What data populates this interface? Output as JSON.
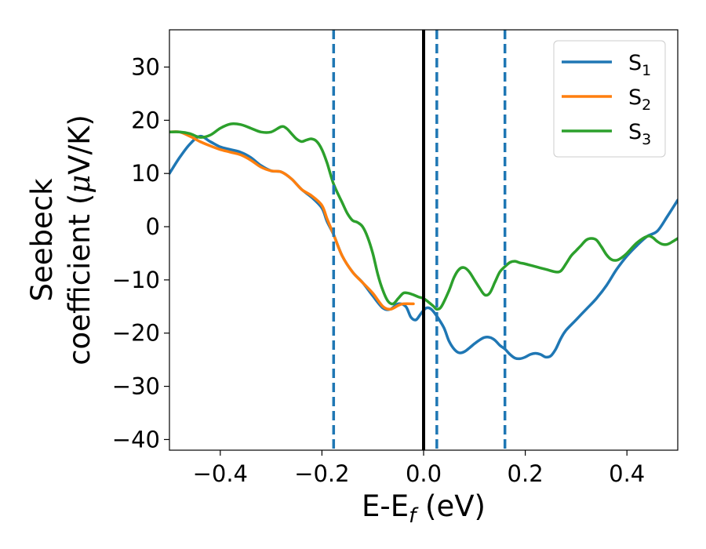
{
  "chart_data": {
    "type": "line",
    "xlabel": {
      "main": "E-E",
      "sub": "f",
      "rest": " (eV)"
    },
    "ylabel": {
      "line1": "Seebeck",
      "line2_prefix": "coefficient  (",
      "mu": "μ",
      "line2_suffix": "V/K)"
    },
    "xlim": [
      -0.5,
      0.5
    ],
    "ylim": [
      -42,
      37
    ],
    "xticks": [
      -0.4,
      -0.2,
      0.0,
      0.2,
      0.4
    ],
    "xtick_labels": [
      "−0.4",
      "−0.2",
      "0.0",
      "0.2",
      "0.4"
    ],
    "yticks": [
      30,
      20,
      10,
      0,
      -10,
      -20,
      -30,
      -40
    ],
    "ytick_labels": [
      "30",
      "20",
      "10",
      "0",
      "−10",
      "−20",
      "−30",
      "−40"
    ],
    "grid": false,
    "legend_position": "top-right",
    "vlines": [
      {
        "x": 0.0,
        "style": "solid",
        "color": "#000000"
      },
      {
        "x": -0.177,
        "style": "dashed",
        "color": "#1f77b4"
      },
      {
        "x": 0.026,
        "style": "dashed",
        "color": "#1f77b4"
      },
      {
        "x": 0.16,
        "style": "dashed",
        "color": "#1f77b4"
      }
    ],
    "series": [
      {
        "name": "S",
        "sub": "1",
        "color": "#1f77b4",
        "points": [
          [
            -0.5,
            10
          ],
          [
            -0.48,
            13
          ],
          [
            -0.46,
            15.5
          ],
          [
            -0.44,
            17
          ],
          [
            -0.42,
            16
          ],
          [
            -0.4,
            15
          ],
          [
            -0.38,
            14.5
          ],
          [
            -0.36,
            14
          ],
          [
            -0.34,
            13
          ],
          [
            -0.32,
            11.5
          ],
          [
            -0.3,
            10.5
          ],
          [
            -0.28,
            10.3
          ],
          [
            -0.26,
            9
          ],
          [
            -0.24,
            7
          ],
          [
            -0.22,
            5.5
          ],
          [
            -0.2,
            3.5
          ],
          [
            -0.19,
            1
          ],
          [
            -0.177,
            -1.5
          ],
          [
            -0.16,
            -5.5
          ],
          [
            -0.14,
            -8.5
          ],
          [
            -0.12,
            -10.5
          ],
          [
            -0.1,
            -13
          ],
          [
            -0.08,
            -15.3
          ],
          [
            -0.065,
            -15.5
          ],
          [
            -0.05,
            -14.5
          ],
          [
            -0.035,
            -15
          ],
          [
            -0.025,
            -17
          ],
          [
            -0.015,
            -17.5
          ],
          [
            -0.005,
            -16.3
          ],
          [
            0.005,
            -15.3
          ],
          [
            0.015,
            -15.5
          ],
          [
            0.026,
            -16.8
          ],
          [
            0.04,
            -19
          ],
          [
            0.05,
            -21.5
          ],
          [
            0.06,
            -23
          ],
          [
            0.07,
            -23.7
          ],
          [
            0.08,
            -23.5
          ],
          [
            0.09,
            -22.8
          ],
          [
            0.1,
            -22
          ],
          [
            0.11,
            -21.3
          ],
          [
            0.12,
            -20.8
          ],
          [
            0.13,
            -20.8
          ],
          [
            0.14,
            -21.3
          ],
          [
            0.15,
            -22.3
          ],
          [
            0.16,
            -23
          ],
          [
            0.17,
            -24
          ],
          [
            0.18,
            -24.7
          ],
          [
            0.19,
            -24.8
          ],
          [
            0.2,
            -24.5
          ],
          [
            0.21,
            -24
          ],
          [
            0.22,
            -23.8
          ],
          [
            0.23,
            -24
          ],
          [
            0.24,
            -24.5
          ],
          [
            0.25,
            -24.3
          ],
          [
            0.26,
            -23
          ],
          [
            0.27,
            -21
          ],
          [
            0.28,
            -19.5
          ],
          [
            0.3,
            -17.5
          ],
          [
            0.32,
            -15.5
          ],
          [
            0.34,
            -13.5
          ],
          [
            0.36,
            -11
          ],
          [
            0.38,
            -8
          ],
          [
            0.4,
            -5.5
          ],
          [
            0.42,
            -3.5
          ],
          [
            0.44,
            -1.8
          ],
          [
            0.46,
            -0.8
          ],
          [
            0.48,
            2
          ],
          [
            0.5,
            5
          ]
        ]
      },
      {
        "name": "S",
        "sub": "2",
        "color": "#ff7f0e",
        "points": [
          [
            -0.5,
            17.8
          ],
          [
            -0.48,
            17.8
          ],
          [
            -0.46,
            17
          ],
          [
            -0.44,
            16
          ],
          [
            -0.42,
            15.2
          ],
          [
            -0.4,
            14.5
          ],
          [
            -0.38,
            14
          ],
          [
            -0.36,
            13.5
          ],
          [
            -0.34,
            12.5
          ],
          [
            -0.32,
            11.2
          ],
          [
            -0.3,
            10.5
          ],
          [
            -0.28,
            10.3
          ],
          [
            -0.26,
            9
          ],
          [
            -0.24,
            7
          ],
          [
            -0.22,
            5.8
          ],
          [
            -0.2,
            4
          ],
          [
            -0.19,
            1.5
          ],
          [
            -0.177,
            -1.5
          ],
          [
            -0.16,
            -5.5
          ],
          [
            -0.14,
            -8.5
          ],
          [
            -0.12,
            -10.5
          ],
          [
            -0.1,
            -12.5
          ],
          [
            -0.08,
            -15
          ],
          [
            -0.065,
            -15.5
          ],
          [
            -0.05,
            -14.8
          ],
          [
            -0.04,
            -14.5
          ],
          [
            -0.02,
            -14.5
          ]
        ]
      },
      {
        "name": "S",
        "sub": "3",
        "color": "#2ca02c",
        "points": [
          [
            -0.5,
            17.8
          ],
          [
            -0.48,
            17.8
          ],
          [
            -0.46,
            17.5
          ],
          [
            -0.44,
            16.8
          ],
          [
            -0.42,
            17.2
          ],
          [
            -0.4,
            18.5
          ],
          [
            -0.38,
            19.3
          ],
          [
            -0.36,
            19.2
          ],
          [
            -0.34,
            18.5
          ],
          [
            -0.32,
            17.8
          ],
          [
            -0.3,
            17.8
          ],
          [
            -0.28,
            18.8
          ],
          [
            -0.27,
            18.5
          ],
          [
            -0.26,
            17.5
          ],
          [
            -0.25,
            16.5
          ],
          [
            -0.24,
            16
          ],
          [
            -0.23,
            16.3
          ],
          [
            -0.22,
            16.5
          ],
          [
            -0.21,
            16
          ],
          [
            -0.2,
            14.5
          ],
          [
            -0.19,
            12
          ],
          [
            -0.177,
            8
          ],
          [
            -0.16,
            4.5
          ],
          [
            -0.15,
            2.5
          ],
          [
            -0.14,
            1.2
          ],
          [
            -0.13,
            0.8
          ],
          [
            -0.12,
            0
          ],
          [
            -0.11,
            -2
          ],
          [
            -0.1,
            -5
          ],
          [
            -0.09,
            -9
          ],
          [
            -0.08,
            -12
          ],
          [
            -0.07,
            -14
          ],
          [
            -0.06,
            -14.5
          ],
          [
            -0.05,
            -13.5
          ],
          [
            -0.04,
            -12.5
          ],
          [
            -0.03,
            -12.5
          ],
          [
            -0.02,
            -12.8
          ],
          [
            -0.01,
            -13.2
          ],
          [
            0.0,
            -13.5
          ],
          [
            0.01,
            -14.2
          ],
          [
            0.02,
            -15
          ],
          [
            0.026,
            -15.5
          ],
          [
            0.035,
            -15
          ],
          [
            0.05,
            -12
          ],
          [
            0.06,
            -9.5
          ],
          [
            0.07,
            -8
          ],
          [
            0.08,
            -7.7
          ],
          [
            0.09,
            -8.5
          ],
          [
            0.1,
            -10
          ],
          [
            0.11,
            -11.5
          ],
          [
            0.12,
            -12.8
          ],
          [
            0.13,
            -12.5
          ],
          [
            0.14,
            -10.5
          ],
          [
            0.15,
            -8.5
          ],
          [
            0.16,
            -7.5
          ],
          [
            0.17,
            -6.7
          ],
          [
            0.18,
            -6.5
          ],
          [
            0.19,
            -6.8
          ],
          [
            0.2,
            -7
          ],
          [
            0.22,
            -7.5
          ],
          [
            0.24,
            -8
          ],
          [
            0.26,
            -8.5
          ],
          [
            0.27,
            -8.3
          ],
          [
            0.28,
            -7
          ],
          [
            0.29,
            -5.5
          ],
          [
            0.3,
            -4.5
          ],
          [
            0.31,
            -3.5
          ],
          [
            0.32,
            -2.5
          ],
          [
            0.33,
            -2.2
          ],
          [
            0.34,
            -2.5
          ],
          [
            0.35,
            -3.8
          ],
          [
            0.36,
            -5.3
          ],
          [
            0.37,
            -6.2
          ],
          [
            0.38,
            -6.3
          ],
          [
            0.39,
            -5.8
          ],
          [
            0.4,
            -5
          ],
          [
            0.42,
            -3
          ],
          [
            0.44,
            -1.8
          ],
          [
            0.45,
            -2
          ],
          [
            0.46,
            -2.8
          ],
          [
            0.47,
            -3.3
          ],
          [
            0.48,
            -3.3
          ],
          [
            0.49,
            -2.8
          ],
          [
            0.5,
            -2.2
          ]
        ]
      }
    ]
  }
}
